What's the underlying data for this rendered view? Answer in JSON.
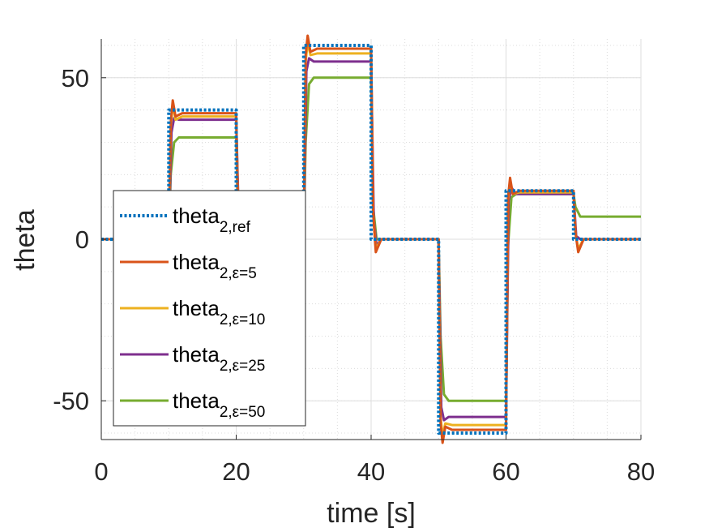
{
  "chart_data": {
    "type": "line",
    "title": "",
    "xlabel": "time [s]",
    "ylabel": "theta",
    "xlim": [
      0,
      80
    ],
    "ylim": [
      -62,
      62
    ],
    "xticks": [
      0,
      20,
      40,
      60,
      80
    ],
    "xtick_labels": [
      "0",
      "20",
      "40",
      "60",
      "80"
    ],
    "yticks": [
      -50,
      0,
      50
    ],
    "ytick_labels": [
      "-50",
      "0",
      "50"
    ],
    "grid": true,
    "minor_grid": true,
    "legend_position": "lower-left",
    "series": [
      {
        "name": "theta",
        "name_sub": "2,ref",
        "color": "#0072BD",
        "style": "dotted",
        "x": [
          0,
          10,
          10,
          20,
          20,
          30,
          30,
          40,
          40,
          50,
          50,
          60,
          60,
          70,
          70,
          80
        ],
        "y": [
          0,
          0,
          40,
          40,
          0,
          0,
          60,
          60,
          0,
          0,
          -60,
          -60,
          15,
          15,
          0,
          0
        ]
      },
      {
        "name": "theta",
        "name_sub": "2,ε=5",
        "color": "#D95319",
        "style": "solid",
        "x": [
          0,
          10,
          10.3,
          10.6,
          11,
          12,
          20,
          20.3,
          21,
          30,
          30.3,
          30.6,
          31,
          32,
          40,
          40.3,
          40.7,
          41.5,
          50,
          50.3,
          50.6,
          51,
          52,
          60,
          60.3,
          60.6,
          61,
          62,
          70,
          70.3,
          70.7,
          71.5,
          80
        ],
        "y": [
          0,
          0,
          36,
          43,
          38,
          39,
          39,
          6,
          0,
          0,
          57,
          63,
          58,
          59,
          59,
          8,
          -4,
          0,
          0,
          -57,
          -63,
          -58,
          -59,
          -59,
          13,
          19,
          14,
          15,
          15,
          2,
          -4,
          0,
          0
        ]
      },
      {
        "name": "theta",
        "name_sub": "2,ε=10",
        "color": "#EDB120",
        "style": "solid",
        "x": [
          0,
          10,
          10.3,
          10.6,
          11,
          12,
          20,
          20.3,
          21,
          30,
          30.3,
          30.6,
          31,
          32,
          40,
          40.3,
          40.7,
          41.5,
          50,
          50.3,
          50.6,
          51,
          52,
          60,
          60.3,
          60.6,
          61,
          62,
          70,
          70.3,
          70.7,
          71.5,
          80
        ],
        "y": [
          0,
          0,
          35,
          42,
          37,
          38,
          38,
          6,
          0,
          0,
          55,
          61,
          57,
          57.5,
          57.5,
          8,
          -3,
          0,
          0,
          -55,
          -61,
          -57,
          -57.5,
          -57.5,
          12,
          18,
          14,
          14.5,
          14.5,
          2,
          -3,
          0,
          0
        ]
      },
      {
        "name": "theta",
        "name_sub": "2,ε=25",
        "color": "#7E2F8E",
        "style": "solid",
        "x": [
          0,
          10,
          10.4,
          10.8,
          11.5,
          20,
          20.4,
          21,
          30,
          30.4,
          30.8,
          31.5,
          40,
          40.4,
          40.8,
          41.5,
          50,
          50.4,
          50.8,
          51.5,
          60,
          60.4,
          60.8,
          61.5,
          70,
          70.4,
          71,
          80
        ],
        "y": [
          0,
          0,
          33,
          37.5,
          37,
          37,
          5,
          0,
          0,
          52,
          56,
          55,
          55,
          6,
          -2,
          0,
          0,
          -52,
          -56,
          -55,
          -55,
          12,
          16,
          14,
          14,
          1,
          0,
          0
        ]
      },
      {
        "name": "theta",
        "name_sub": "2,ε=50",
        "color": "#77AC30",
        "style": "solid",
        "x": [
          0,
          10,
          10.3,
          10.8,
          11.5,
          20,
          20.3,
          21,
          30,
          30.3,
          30.8,
          31.5,
          40,
          40.3,
          40.8,
          41.5,
          50,
          50.3,
          50.8,
          51.5,
          60,
          60.3,
          60.8,
          61.5,
          70,
          70.3,
          71,
          80
        ],
        "y": [
          0,
          0,
          20,
          30,
          31.5,
          31.5,
          3,
          0,
          0,
          30,
          48,
          50,
          50,
          10,
          0,
          0,
          0,
          -30,
          -48,
          -50,
          -50,
          -2,
          13,
          14,
          14,
          10,
          7,
          7
        ]
      }
    ]
  }
}
